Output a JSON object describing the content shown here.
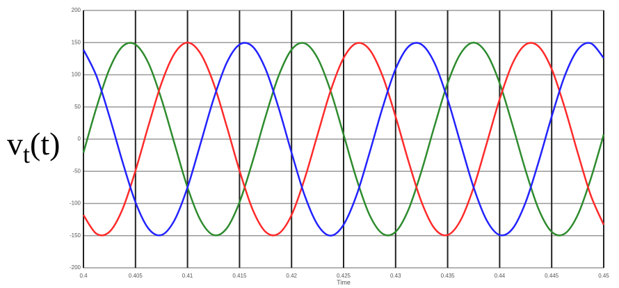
{
  "chart_data": {
    "type": "line",
    "xlabel": "Time",
    "ylabel_parts": [
      "v",
      "t",
      "(t)"
    ],
    "x": [
      0.4,
      0.40125,
      0.4025,
      0.40375,
      0.405,
      0.40625,
      0.4075,
      0.40875,
      0.41,
      0.41125,
      0.4125,
      0.41375,
      0.415,
      0.41625,
      0.4175,
      0.41875,
      0.42,
      0.42125,
      0.4225,
      0.42375,
      0.425,
      0.42625,
      0.4275,
      0.42875,
      0.43,
      0.43125,
      0.4325,
      0.43375,
      0.435,
      0.43625,
      0.4375,
      0.43875,
      0.44,
      0.44125,
      0.4425,
      0.44375,
      0.445,
      0.44625,
      0.4475,
      0.44875,
      0.45
    ],
    "series": [
      {
        "color": "#2e8b2e",
        "values": [
          -21,
          49,
          109,
          144,
          147,
          118,
          62,
          -7,
          -75,
          -126,
          -149,
          -139,
          -98,
          -35,
          35,
          98,
          139,
          149,
          126,
          75,
          7,
          -62,
          -118,
          -147,
          -144,
          -109,
          -49,
          21,
          87,
          133,
          150,
          133,
          87,
          21,
          -49,
          -109,
          -144,
          -147,
          -118,
          -62,
          7
        ]
      },
      {
        "color": "#ff2a2a",
        "values": [
          -118,
          -147,
          -144,
          -109,
          -49,
          21,
          87,
          133,
          150,
          133,
          87,
          21,
          -49,
          -109,
          -144,
          -147,
          -118,
          -62,
          7,
          75,
          126,
          149,
          139,
          98,
          35,
          -35,
          -98,
          -139,
          -149,
          -126,
          -75,
          -7,
          62,
          118,
          147,
          144,
          109,
          49,
          -21,
          -87,
          -133
        ]
      },
      {
        "color": "#2222ff",
        "values": [
          139,
          98,
          35,
          -35,
          -98,
          -139,
          -149,
          -126,
          -75,
          -7,
          62,
          118,
          147,
          144,
          109,
          49,
          -21,
          -87,
          -133,
          -150,
          -133,
          -87,
          -21,
          49,
          109,
          144,
          147,
          118,
          62,
          -7,
          -75,
          -126,
          -149,
          -139,
          -98,
          -35,
          35,
          98,
          139,
          149,
          126
        ]
      }
    ],
    "xlim": [
      0.4,
      0.45
    ],
    "xticks": [
      0.4,
      0.405,
      0.41,
      0.415,
      0.42,
      0.425,
      0.43,
      0.435,
      0.44,
      0.445,
      0.45
    ],
    "ylim": [
      -200,
      200
    ],
    "yticks": [
      -200,
      -150,
      -100,
      -50,
      0,
      50,
      100,
      150,
      200
    ],
    "grid": true
  }
}
